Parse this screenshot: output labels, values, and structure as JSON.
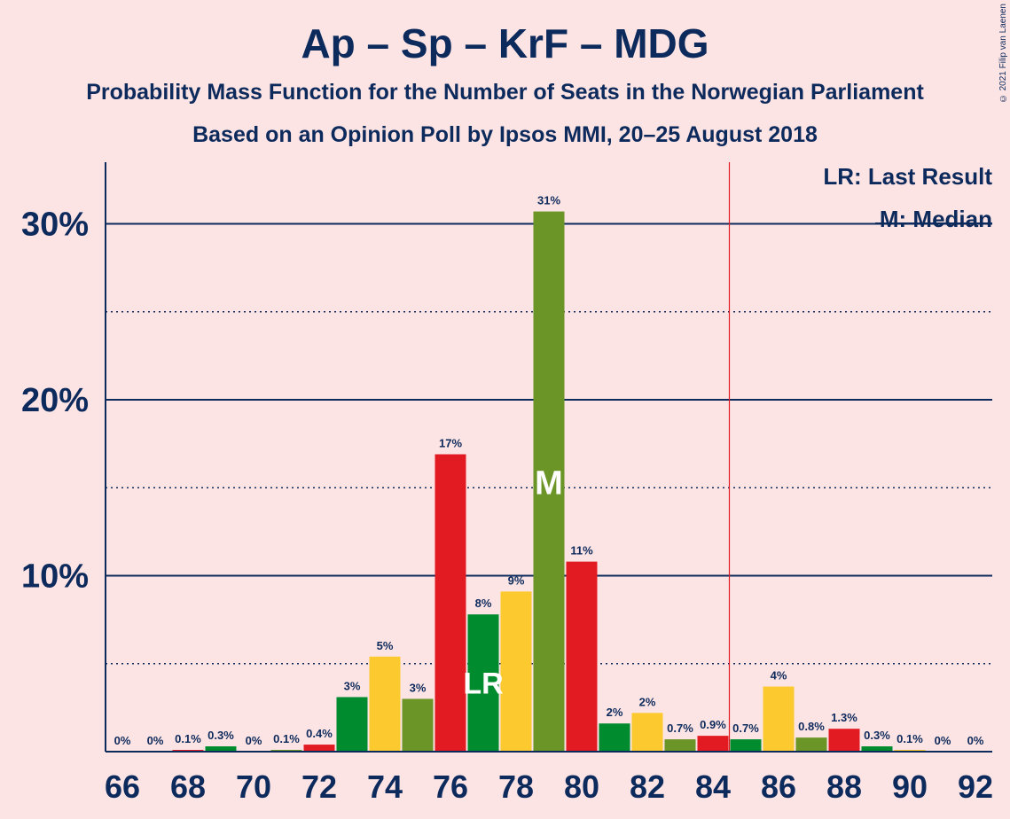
{
  "title": "Ap – Sp – KrF – MDG",
  "subtitle1": "Probability Mass Function for the Number of Seats in the Norwegian Parliament",
  "subtitle2": "Based on an Opinion Poll by Ipsos MMI, 20–25 August 2018",
  "copyright": "© 2021 Filip van Laenen",
  "legend": {
    "lr": "LR: Last Result",
    "m": "M: Median"
  },
  "colors": {
    "background": "#fde4e4",
    "text": "#0d2a5c",
    "cycle": [
      "#e21b23",
      "#008c2e",
      "#fcca2e",
      "#6b9527"
    ],
    "last_result_line": "#e21b23"
  },
  "chart_data": {
    "type": "bar",
    "x": [
      66,
      67,
      68,
      69,
      70,
      71,
      72,
      73,
      74,
      75,
      76,
      77,
      78,
      79,
      80,
      81,
      82,
      83,
      84,
      85,
      86,
      87,
      88,
      89,
      90,
      91,
      92
    ],
    "values": [
      0,
      0,
      0.1,
      0.3,
      0,
      0.1,
      0.4,
      3.1,
      5.4,
      3.0,
      16.9,
      7.8,
      9.1,
      30.7,
      10.8,
      1.6,
      2.2,
      0.7,
      0.9,
      0.7,
      3.7,
      0.8,
      1.3,
      0.3,
      0.1,
      0,
      0
    ],
    "labels": [
      "0%",
      "0%",
      "0.1%",
      "0.3%",
      "0%",
      "0.1%",
      "0.4%",
      "3%",
      "5%",
      "3%",
      "17%",
      "8%",
      "9%",
      "31%",
      "11%",
      "2%",
      "2%",
      "0.7%",
      "0.9%",
      "0.7%",
      "4%",
      "0.8%",
      "1.3%",
      "0.3%",
      "0.1%",
      "0%",
      "0%"
    ],
    "x_tick_labels": [
      "66",
      "68",
      "70",
      "72",
      "74",
      "76",
      "78",
      "80",
      "82",
      "84",
      "86",
      "88",
      "90",
      "92"
    ],
    "y_tick_labels": [
      "10%",
      "20%",
      "30%"
    ],
    "ylim": [
      0,
      33.5
    ],
    "median": 79,
    "median_label": "M",
    "last_result": 77,
    "last_result_label": "LR",
    "majority_line": 84.5
  }
}
